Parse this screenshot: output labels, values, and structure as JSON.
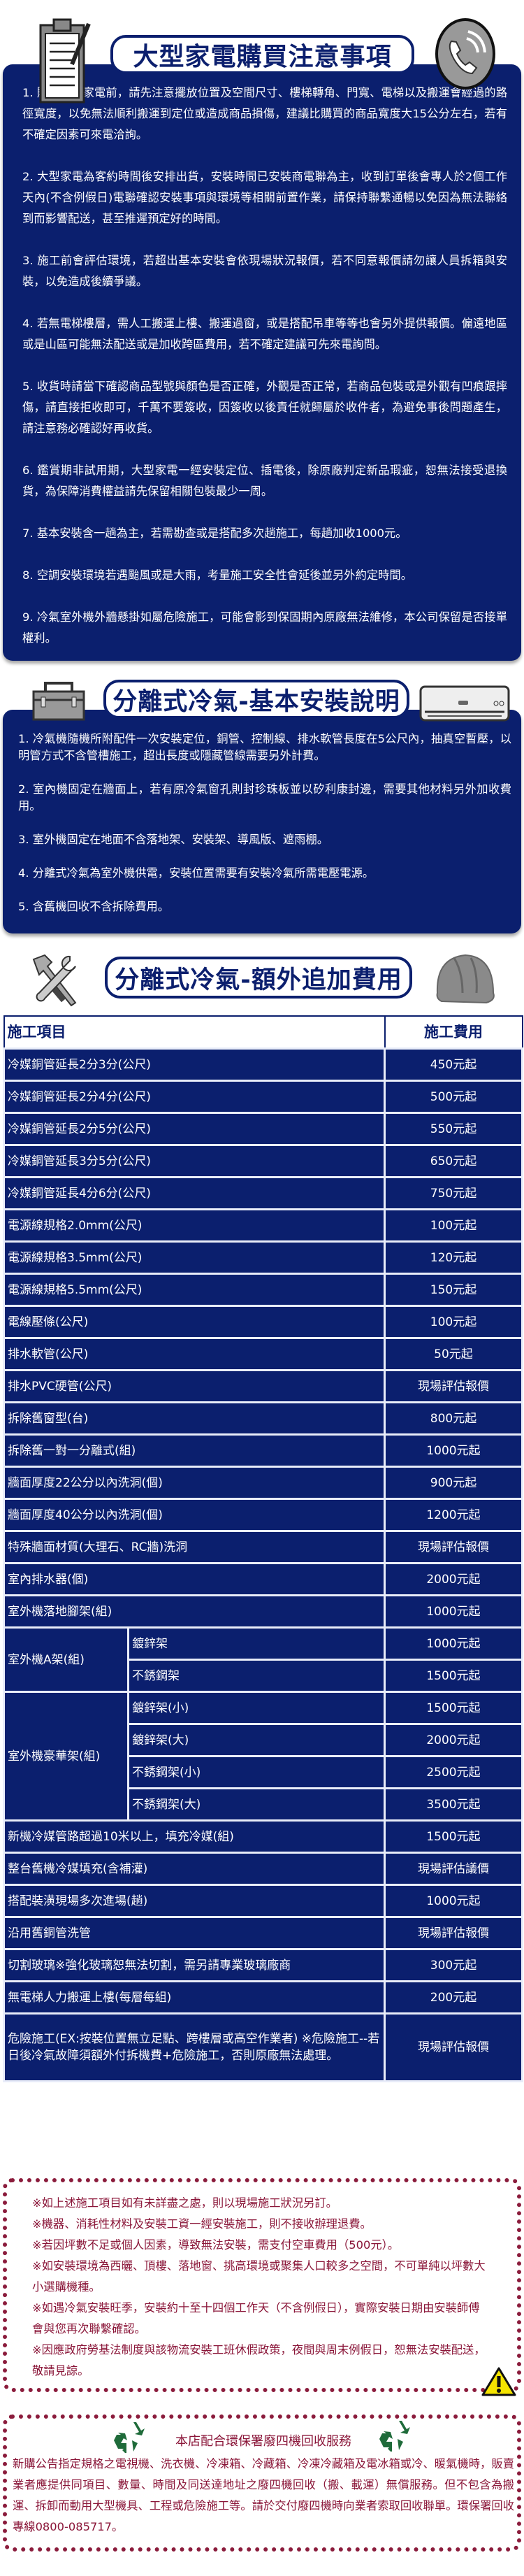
{
  "colors": {
    "navy": "#0b1f6e",
    "maroon": "#8a1538",
    "recycle_green": "#1f6b3a",
    "warning_yellow": "#f5e400"
  },
  "section1": {
    "title": "大型家電購買注意事項",
    "icons": [
      "clipboard-icon",
      "phone-icon"
    ],
    "items": [
      "1. 購買大型家電前，請先注意擺放位置及空間尺寸、樓梯轉角、門寬、電梯以及搬運會經過的路徑寬度，以免無法順利搬運到定位或造成商品損傷，建議比購買的商品寬度大15公分左右，若有不確定因素可來電洽詢。",
      "2. 大型家電為客約時間後安排出貨，安裝時間已安裝商電聯為主，收到訂單後會專人於2個工作天內(不含例假日)電聯確認安裝事項與環境等相關前置作業，請保持聯繫通暢以免因為無法聯絡到而影響配送，甚至推遲預定好的時間。",
      "3. 施工前會評估環境，若超出基本安裝會依現場狀況報價，若不同意報價請勿讓人員拆箱與安裝，以免造成後續爭議。",
      "4. 若無電梯樓層，需人工搬運上樓、搬運過窗，或是搭配吊車等等也會另外提供報價。偏遠地區或是山區可能無法配送或是加收跨區費用，若不確定建議可先來電詢問。",
      "5. 收貨時請當下確認商品型號與顏色是否正確，外觀是否正常，若商品包裝或是外觀有凹痕跟摔傷，請直接拒收即可，千萬不要簽收，因簽收以後責任就歸屬於收件者，為避免事後問題產生，請注意務必確認好再收貨。",
      "6. 鑑賞期非試用期，大型家電一經安裝定位、插電後，除原廠判定新品瑕疵，恕無法接受退換貨，為保障消費權益請先保留相關包裝最少一周。",
      "7. 基本安裝含一趟為主，若需勘查或是搭配多次趟施工，每趟加收1000元。",
      "8. 空調安裝環境若遇颱風或是大雨，考量施工安全性會延後並另外約定時間。",
      "9. 冷氣室外機外牆懸掛如屬危險施工，可能會影到保固期內原廠無法維修，本公司保留是否接單權利。"
    ]
  },
  "section2": {
    "title": "分離式冷氣-基本安裝說明",
    "icons": [
      "toolbox-icon",
      "air-conditioner-icon"
    ],
    "items": [
      "1. 冷氣機隨機所附配件一次安裝定位，銅管、控制線、排水軟管長度在5公尺內，抽真空暫壓，以明管方式不含管槽施工，超出長度或隱藏管線需要另外計費。",
      "2. 室內機固定在牆面上，若有原冷氣窗孔則封珍珠板並以矽利康封邊，需要其他材料另外加收費用。",
      "3. 室外機固定在地面不含落地架、安裝架、導風版、遮雨棚。",
      "4. 分離式冷氣為室外機供電，安裝位置需要有安裝冷氣所需電壓電源。",
      "5. 含舊機回收不含拆除費用。"
    ]
  },
  "section3": {
    "title": "分離式冷氣-額外追加費用",
    "icons": [
      "tools-icon",
      "hard-hat-icon"
    ],
    "table": {
      "headers": [
        "施工項目",
        "施工費用"
      ],
      "rows": [
        {
          "item": "冷媒銅管延長2分3分(公尺)",
          "price": "450元起"
        },
        {
          "item": "冷媒銅管延長2分4分(公尺)",
          "price": "500元起"
        },
        {
          "item": "冷媒銅管延長2分5分(公尺)",
          "price": "550元起"
        },
        {
          "item": "冷媒銅管延長3分5分(公尺)",
          "price": "650元起"
        },
        {
          "item": "冷媒銅管延長4分6分(公尺)",
          "price": "750元起"
        },
        {
          "item": "電源線規格2.0mm(公尺)",
          "price": "100元起"
        },
        {
          "item": "電源線規格3.5mm(公尺)",
          "price": "120元起"
        },
        {
          "item": "電源線規格5.5mm(公尺)",
          "price": "150元起"
        },
        {
          "item": "電線壓條(公尺)",
          "price": "100元起"
        },
        {
          "item": "排水軟管(公尺)",
          "price": "50元起"
        },
        {
          "item": "排水PVC硬管(公尺)",
          "price": "現場評估報價"
        },
        {
          "item": "拆除舊窗型(台)",
          "price": "800元起"
        },
        {
          "item": "拆除舊一對一分離式(組)",
          "price": "1000元起"
        },
        {
          "item": "牆面厚度22公分以內洗洞(個)",
          "price": "900元起"
        },
        {
          "item": "牆面厚度40公分以內洗洞(個)",
          "price": "1200元起"
        },
        {
          "item": "特殊牆面材質(大理石、RC牆)洗洞",
          "price": "現場評估報價"
        },
        {
          "item": "室內排水器(個)",
          "price": "2000元起"
        },
        {
          "item": "室外機落地腳架(組)",
          "price": "1000元起"
        },
        {
          "item": "室外機A架(組)",
          "sub": [
            {
              "label": "鍍鋅架",
              "price": "1000元起"
            },
            {
              "label": "不銹鋼架",
              "price": "1500元起"
            }
          ]
        },
        {
          "item": "室外機豪華架(組)",
          "sub": [
            {
              "label": "鍍鋅架(小)",
              "price": "1500元起"
            },
            {
              "label": "鍍鋅架(大)",
              "price": "2000元起"
            },
            {
              "label": "不銹鋼架(小)",
              "price": "2500元起"
            },
            {
              "label": "不銹鋼架(大)",
              "price": "3500元起"
            }
          ]
        },
        {
          "item": "新機冷媒管路超過10米以上，填充冷媒(組)",
          "price": "1500元起"
        },
        {
          "item": "整台舊機冷媒填充(含補灌)",
          "price": "現場評估議價"
        },
        {
          "item": "搭配裝潢現場多次進場(趟)",
          "price": "1000元起"
        },
        {
          "item": "沿用舊銅管洗管",
          "price": "現場評估報價"
        },
        {
          "item": "切割玻璃※強化玻璃恕無法切割，需另請專業玻璃廠商",
          "price": "300元起"
        },
        {
          "item": "無電梯人力搬運上樓(每層每組)",
          "price": "200元起"
        },
        {
          "item": "危險施工(EX:按裝位置無立足點、跨樓層或高空作業者) ※危險施工--若日後冷氣故障須額外付拆機費+危險施工，否則原廠無法處理。",
          "price": "現場評估報價",
          "tall": true
        }
      ]
    }
  },
  "notes": {
    "lines": [
      "※如上述施工項目如有未詳盡之處，則以現場施工狀況另訂。",
      "※機器、消耗性材料及安裝工資一經安裝施工，則不接收辦理退費。",
      "※若因坪數不足或個人因素，導致無法安裝，需支付空車費用（500元）。",
      "※如安裝環境為西曬、頂樓、落地窗、挑高環境或聚集人口較多之空間，不可單純以坪數大小選購機種。",
      "※如遇冷氣安裝旺季，安裝約十至十四個工作天（不含例假日），實際安裝日期由安裝師傅會與您再次聯繫確認。",
      "※因應政府勞基法制度與該物流安裝工班休假政策，夜間與周末例假日，恕無法安裝配送，敬請見諒。"
    ],
    "icon": "warning-icon"
  },
  "recycle": {
    "title": "本店配合環保署廢四機回收服務",
    "body": "新購公告指定規格之電視機、洗衣機、冷凍箱、冷藏箱、冷凍冷藏箱及電冰箱或冷、暖氣機時，販賣業者應提供同項目、數量、時間及同送達地址之廢四機回收（搬、載運）無償服務。但不包含為搬運、拆卸而動用大型機具、工程或危險施工等。請於交付廢四機時向業者索取回收聯單。環保署回收專線0800-085717。",
    "icon": "recycle-icon"
  }
}
